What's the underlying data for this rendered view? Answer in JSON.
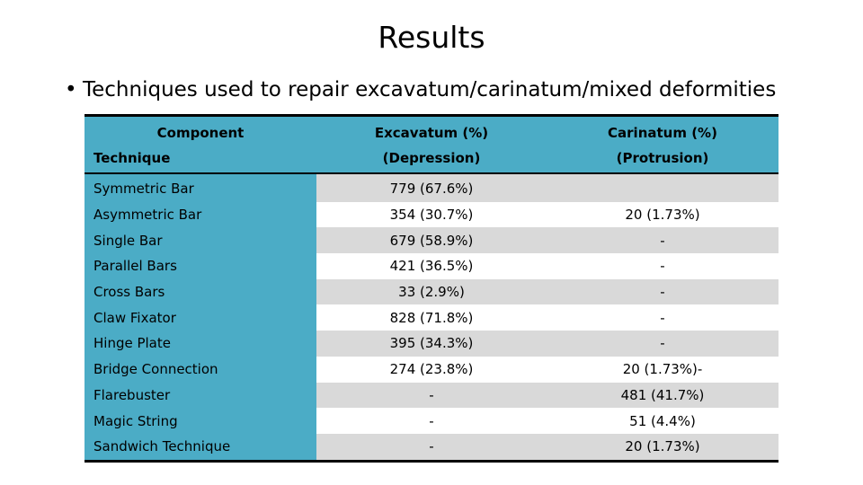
{
  "slide": {
    "title": "Results",
    "bullet": "Techniques used to repair excavatum/carinatum/mixed deformities"
  },
  "table": {
    "header_row1": [
      "Component",
      "Excavatum (%)",
      "Carinatum (%)"
    ],
    "header_row2": [
      "Technique",
      "(Depression)",
      "(Protrusion)"
    ],
    "rows": [
      {
        "technique": "Symmetric Bar",
        "excavatum": "779 (67.6%)",
        "carinatum": ""
      },
      {
        "technique": "Asymmetric Bar",
        "excavatum": "354 (30.7%)",
        "carinatum": "20 (1.73%)"
      },
      {
        "technique": "Single Bar",
        "excavatum": "679 (58.9%)",
        "carinatum": "-"
      },
      {
        "technique": "Parallel Bars",
        "excavatum": "421 (36.5%)",
        "carinatum": "-"
      },
      {
        "technique": "Cross Bars",
        "excavatum": "33 (2.9%)",
        "carinatum": "-"
      },
      {
        "technique": "Claw Fixator",
        "excavatum": "828 (71.8%)",
        "carinatum": "-"
      },
      {
        "technique": "Hinge Plate",
        "excavatum": "395 (34.3%)",
        "carinatum": "-"
      },
      {
        "technique": "Bridge Connection",
        "excavatum": "274 (23.8%)",
        "carinatum": "20 (1.73%)-"
      },
      {
        "technique": "Flarebuster",
        "excavatum": "-",
        "carinatum": "481 (41.7%)"
      },
      {
        "technique": "Magic String",
        "excavatum": "-",
        "carinatum": "51 (4.4%)"
      },
      {
        "technique": "Sandwich Technique",
        "excavatum": "-",
        "carinatum": "20 (1.73%)"
      }
    ]
  },
  "colors": {
    "header_fill": "#4bacc6",
    "band_gray": "#d9d9d9",
    "band_white": "#ffffff"
  }
}
